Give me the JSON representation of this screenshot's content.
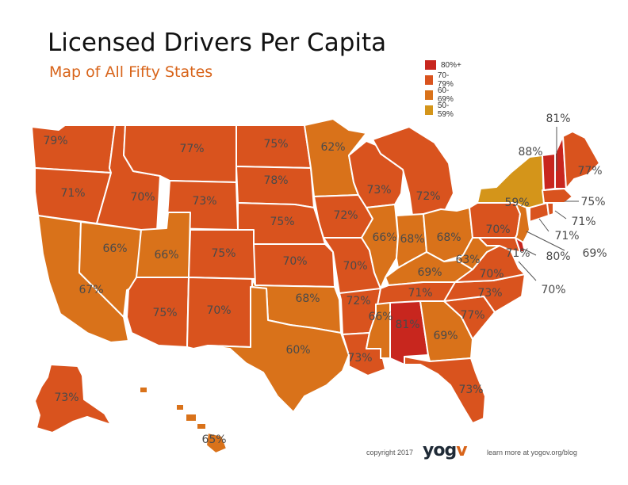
{
  "title": "Licensed Drivers Per Capita",
  "subtitle": "Map of All Fifty States",
  "legend": [
    {
      "label": "80%+",
      "color": "#c8261e"
    },
    {
      "label": "70-79%",
      "color": "#d9531e"
    },
    {
      "label": "60-69%",
      "color": "#d9721a"
    },
    {
      "label": "50-59%",
      "color": "#d4951a"
    }
  ],
  "states": [
    {
      "id": "WA",
      "value": 79
    },
    {
      "id": "OR",
      "value": 71
    },
    {
      "id": "CA",
      "value": 67
    },
    {
      "id": "ID",
      "value": 70
    },
    {
      "id": "NV",
      "value": 66
    },
    {
      "id": "MT",
      "value": 77
    },
    {
      "id": "WY",
      "value": 73
    },
    {
      "id": "UT",
      "value": 66
    },
    {
      "id": "AZ",
      "value": 75
    },
    {
      "id": "CO",
      "value": 75
    },
    {
      "id": "NM",
      "value": 70
    },
    {
      "id": "ND",
      "value": 75
    },
    {
      "id": "SD",
      "value": 78
    },
    {
      "id": "NE",
      "value": 75
    },
    {
      "id": "KS",
      "value": 70
    },
    {
      "id": "OK",
      "value": 68
    },
    {
      "id": "TX",
      "value": 60
    },
    {
      "id": "MN",
      "value": 62
    },
    {
      "id": "IA",
      "value": 72
    },
    {
      "id": "MO",
      "value": 70
    },
    {
      "id": "AR",
      "value": 72
    },
    {
      "id": "LA",
      "value": 73
    },
    {
      "id": "WI",
      "value": 73
    },
    {
      "id": "IL",
      "value": 66
    },
    {
      "id": "MI",
      "value": 72
    },
    {
      "id": "IN",
      "value": 68
    },
    {
      "id": "OH",
      "value": 68
    },
    {
      "id": "KY",
      "value": 69
    },
    {
      "id": "TN",
      "value": 71
    },
    {
      "id": "MS",
      "value": 66
    },
    {
      "id": "AL",
      "value": 81
    },
    {
      "id": "GA",
      "value": 69
    },
    {
      "id": "FL",
      "value": 73
    },
    {
      "id": "SC",
      "value": 77
    },
    {
      "id": "NC",
      "value": 73
    },
    {
      "id": "VA",
      "value": 70
    },
    {
      "id": "WV",
      "value": 63
    },
    {
      "id": "PA",
      "value": 70
    },
    {
      "id": "NY",
      "value": 59
    },
    {
      "id": "VT",
      "value": 88
    },
    {
      "id": "NH",
      "value": 81
    },
    {
      "id": "ME",
      "value": 77
    },
    {
      "id": "MA",
      "value": 75
    },
    {
      "id": "RI",
      "value": 71
    },
    {
      "id": "CT",
      "value": 71
    },
    {
      "id": "NJ",
      "value": 69
    },
    {
      "id": "DE",
      "value": 80
    },
    {
      "id": "MD",
      "value": 71
    },
    {
      "id": "DC",
      "value": 70
    },
    {
      "id": "AK",
      "value": 73
    },
    {
      "id": "HI",
      "value": 65
    }
  ],
  "labels": [
    {
      "state": "WA",
      "text": "79%"
    },
    {
      "state": "OR",
      "text": "71%"
    },
    {
      "state": "CA",
      "text": "67%"
    },
    {
      "state": "ID",
      "text": "70%"
    },
    {
      "state": "NV",
      "text": "66%"
    },
    {
      "state": "MT",
      "text": "77%"
    },
    {
      "state": "WY",
      "text": "73%"
    },
    {
      "state": "UT",
      "text": "66%"
    },
    {
      "state": "AZ",
      "text": "75%"
    },
    {
      "state": "CO",
      "text": "75%"
    },
    {
      "state": "NM",
      "text": "70%"
    },
    {
      "state": "ND",
      "text": "75%"
    },
    {
      "state": "SD",
      "text": "78%"
    },
    {
      "state": "NE",
      "text": "75%"
    },
    {
      "state": "KS",
      "text": "70%"
    },
    {
      "state": "OK",
      "text": "68%"
    },
    {
      "state": "TX",
      "text": "60%"
    },
    {
      "state": "MN",
      "text": "62%"
    },
    {
      "state": "IA",
      "text": "72%"
    },
    {
      "state": "MO",
      "text": "70%"
    },
    {
      "state": "AR",
      "text": "72%"
    },
    {
      "state": "LA",
      "text": "73%"
    },
    {
      "state": "WI",
      "text": "73%"
    },
    {
      "state": "IL",
      "text": "66%"
    },
    {
      "state": "MI",
      "text": "72%"
    },
    {
      "state": "IN",
      "text": "68%"
    },
    {
      "state": "OH",
      "text": "68%"
    },
    {
      "state": "KY",
      "text": "69%"
    },
    {
      "state": "TN",
      "text": "71%"
    },
    {
      "state": "MS",
      "text": "66%"
    },
    {
      "state": "AL",
      "text": "81%"
    },
    {
      "state": "GA",
      "text": "69%"
    },
    {
      "state": "FL",
      "text": "73%"
    },
    {
      "state": "SC",
      "text": "77%"
    },
    {
      "state": "NC",
      "text": "73%"
    },
    {
      "state": "VA",
      "text": "70%"
    },
    {
      "state": "WV",
      "text": "63%"
    },
    {
      "state": "PA",
      "text": "70%"
    },
    {
      "state": "NY",
      "text": "59%"
    },
    {
      "state": "VT",
      "text": "88%"
    },
    {
      "state": "NH",
      "text": "81%"
    },
    {
      "state": "ME",
      "text": "77%"
    },
    {
      "state": "MA",
      "text": "75%"
    },
    {
      "state": "RI",
      "text": "71%"
    },
    {
      "state": "CT",
      "text": "71%"
    },
    {
      "state": "NJ",
      "text": "69%"
    },
    {
      "state": "DE",
      "text": "80%"
    },
    {
      "state": "MD",
      "text": "71%"
    },
    {
      "state": "DC",
      "text": "70%"
    },
    {
      "state": "AK",
      "text": "73%"
    },
    {
      "state": "HI",
      "text": "65%"
    }
  ],
  "footer": {
    "copyright": "copyright 2017",
    "logo_pre": "yog",
    "logo_post": "v",
    "link": "learn more at yogov.org/blog"
  }
}
